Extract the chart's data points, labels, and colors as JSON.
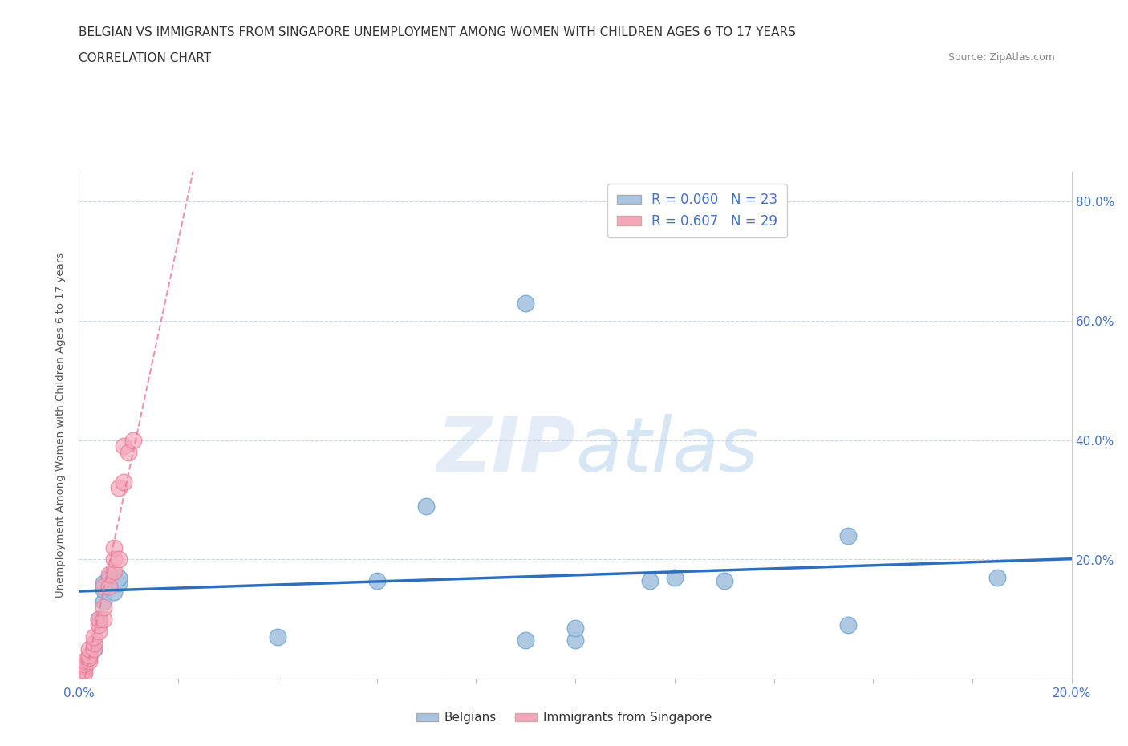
{
  "title": "BELGIAN VS IMMIGRANTS FROM SINGAPORE UNEMPLOYMENT AMONG WOMEN WITH CHILDREN AGES 6 TO 17 YEARS",
  "subtitle": "CORRELATION CHART",
  "source": "Source: ZipAtlas.com",
  "ylabel": "Unemployment Among Women with Children Ages 6 to 17 years",
  "xlim": [
    0.0,
    0.2
  ],
  "ylim": [
    0.0,
    0.85
  ],
  "ytick_vals": [
    0.0,
    0.2,
    0.4,
    0.6,
    0.8
  ],
  "xtick_vals": [
    0.0,
    0.02,
    0.04,
    0.06,
    0.08,
    0.1,
    0.12,
    0.14,
    0.16,
    0.18,
    0.2
  ],
  "belgians_x": [
    0.003,
    0.004,
    0.005,
    0.005,
    0.005,
    0.006,
    0.007,
    0.007,
    0.008,
    0.008,
    0.04,
    0.06,
    0.07,
    0.09,
    0.1,
    0.1,
    0.115,
    0.12,
    0.13,
    0.155,
    0.155,
    0.185,
    0.09
  ],
  "belgians_y": [
    0.05,
    0.1,
    0.13,
    0.15,
    0.16,
    0.17,
    0.17,
    0.145,
    0.16,
    0.17,
    0.07,
    0.165,
    0.29,
    0.065,
    0.065,
    0.085,
    0.165,
    0.17,
    0.165,
    0.09,
    0.24,
    0.17,
    0.63
  ],
  "singapore_x": [
    0.001,
    0.001,
    0.001,
    0.001,
    0.001,
    0.002,
    0.002,
    0.002,
    0.002,
    0.003,
    0.003,
    0.003,
    0.004,
    0.004,
    0.004,
    0.005,
    0.005,
    0.005,
    0.006,
    0.006,
    0.007,
    0.007,
    0.007,
    0.008,
    0.008,
    0.009,
    0.009,
    0.01,
    0.011
  ],
  "singapore_y": [
    0.01,
    0.015,
    0.02,
    0.025,
    0.03,
    0.03,
    0.035,
    0.04,
    0.05,
    0.05,
    0.06,
    0.07,
    0.08,
    0.09,
    0.1,
    0.1,
    0.12,
    0.155,
    0.155,
    0.175,
    0.18,
    0.2,
    0.22,
    0.2,
    0.32,
    0.33,
    0.39,
    0.38,
    0.4
  ],
  "belgian_color": "#a8c4e0",
  "belgian_edge_color": "#7aacd4",
  "singapore_color": "#f4a7b9",
  "singapore_edge_color": "#e87b98",
  "belgian_line_color": "#2e6fbd",
  "singapore_line_color": "#e87b98",
  "r_belgian": 0.06,
  "n_belgian": 23,
  "r_singapore": 0.607,
  "n_singapore": 29,
  "watermark_zip": "ZIP",
  "watermark_atlas": "atlas",
  "background_color": "#ffffff",
  "grid_color": "#c8d8e8",
  "right_label_color": "#4472c4",
  "title_color": "#333333",
  "source_color": "#888888",
  "ylabel_color": "#555555"
}
